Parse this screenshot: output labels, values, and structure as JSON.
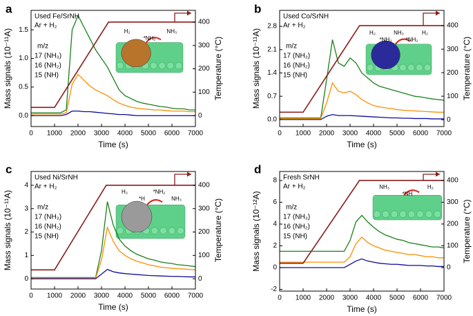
{
  "chart_data": [
    {
      "type": "line",
      "panel": "a",
      "title": "Used Fe/SrNH",
      "subtitle": "Ar + H₂",
      "legend_title": "m/z",
      "xlabel": "Time (s)",
      "ylabel": "Mass signals (10⁻¹¹A)",
      "y2label": "Temperature (°C)",
      "annotations": [
        "H₂",
        "*NH₂",
        "NH₃"
      ],
      "inset_color": "#b8742a",
      "xlim": [
        0,
        7000
      ],
      "xticks": [
        0,
        1000,
        2000,
        3000,
        4000,
        5000,
        6000,
        7000
      ],
      "ylim": [
        -0.19,
        1.84
      ],
      "yticks": [
        {
          "value": 0,
          "label": "0.0"
        },
        0.5,
        {
          "value": 1,
          "label": "1.0"
        },
        1.5
      ],
      "y2lim": [
        -47,
        450
      ],
      "y2ticks": [
        0,
        100,
        200,
        300,
        400
      ],
      "x": [
        0,
        250,
        500,
        750,
        1000,
        1250,
        1500,
        1750,
        2000,
        2250,
        2500,
        2750,
        3000,
        3250,
        3500,
        3750,
        4000,
        4250,
        4500,
        4750,
        5000,
        5250,
        5500,
        5750,
        6000,
        6250,
        6500,
        6750,
        7000
      ],
      "series": [
        {
          "name": "17 (NH₃)",
          "color": "#1a7f1a",
          "values": [
            0.05,
            0.05,
            0.05,
            0.05,
            0.05,
            0.05,
            0.1,
            1.5,
            1.75,
            1.55,
            1.35,
            1.15,
            1.0,
            0.85,
            0.65,
            0.45,
            0.35,
            0.3,
            0.25,
            0.22,
            0.2,
            0.18,
            0.16,
            0.15,
            0.13,
            0.12,
            0.12,
            0.1,
            0.1
          ]
        },
        {
          "name": "16 (NH₂)",
          "color": "#ff8c00",
          "values": [
            0.03,
            0.03,
            0.03,
            0.03,
            0.03,
            0.03,
            0.05,
            0.55,
            0.72,
            0.62,
            0.52,
            0.45,
            0.4,
            0.35,
            0.28,
            0.22,
            0.18,
            0.15,
            0.13,
            0.12,
            0.11,
            0.1,
            0.1,
            0.09,
            0.08,
            0.08,
            0.08,
            0.07,
            0.07
          ]
        },
        {
          "name": "15 (NH)",
          "color": "#0a0a9a",
          "values": [
            0,
            0,
            0,
            0,
            0,
            0,
            0.02,
            0.08,
            0.08,
            0.07,
            0.07,
            0.06,
            0.05,
            0.04,
            0.03,
            0.02,
            0.02,
            0.01,
            0,
            0,
            0,
            0,
            0,
            0,
            0,
            0,
            0,
            0,
            0
          ]
        },
        {
          "axis": "y2",
          "color": "#8b1a1a",
          "x": [
            0,
            1000,
            3300,
            7000
          ],
          "values": [
            35,
            35,
            400,
            400
          ]
        }
      ]
    },
    {
      "type": "line",
      "panel": "b",
      "title": "Used Co/SrNH",
      "subtitle": "Ar + H₂",
      "legend_title": "m/z",
      "xlabel": "Time (s)",
      "ylabel": "Mass signals (10⁻¹¹A)",
      "y2label": "Temperature (°C)",
      "annotations": [
        "H₂",
        "*NH₃",
        "NH₃",
        "*NH₂",
        "H₂"
      ],
      "inset_color": "#2a2a9a",
      "xlim": [
        0,
        7000
      ],
      "xticks": [
        0,
        1000,
        2000,
        3000,
        4000,
        5000,
        6000,
        7000
      ],
      "ylim": [
        -0.21,
        3.28
      ],
      "yticks": [
        {
          "value": 0,
          "label": "0.0"
        },
        0.7,
        1.4,
        2.1,
        2.8
      ],
      "y2lim": [
        -29,
        465
      ],
      "y2ticks": [
        0,
        100,
        200,
        300,
        400
      ],
      "x": [
        0,
        250,
        500,
        750,
        1000,
        1250,
        1500,
        1750,
        2000,
        2250,
        2500,
        2750,
        3000,
        3250,
        3500,
        3750,
        4000,
        4250,
        4500,
        4750,
        5000,
        5250,
        5500,
        5750,
        6000,
        6250,
        6500,
        6750,
        7000
      ],
      "series": [
        {
          "name": "17 (NH₃)",
          "color": "#1a7f1a",
          "values": [
            0.05,
            0.05,
            0.05,
            0.05,
            0.05,
            0.05,
            0.05,
            0.05,
            1.2,
            2.4,
            1.7,
            1.6,
            1.85,
            1.7,
            1.4,
            1.25,
            1.1,
            1.0,
            0.95,
            0.9,
            0.85,
            0.8,
            0.75,
            0.7,
            0.68,
            0.65,
            0.62,
            0.6,
            0.58
          ]
        },
        {
          "name": "16 (NH₂)",
          "color": "#ff8c00",
          "values": [
            0.03,
            0.03,
            0.03,
            0.03,
            0.03,
            0.03,
            0.03,
            0.03,
            0.5,
            1.1,
            0.85,
            0.8,
            0.85,
            0.75,
            0.6,
            0.5,
            0.42,
            0.38,
            0.35,
            0.33,
            0.3,
            0.28,
            0.27,
            0.26,
            0.25,
            0.24,
            0.23,
            0.22,
            0.22
          ]
        },
        {
          "name": "15 (NH)",
          "color": "#0a0a9a",
          "values": [
            0,
            0,
            0,
            0,
            0,
            0,
            0,
            0,
            0.1,
            0.15,
            0.12,
            0.12,
            0.12,
            0.11,
            0.1,
            0.09,
            0.08,
            0.07,
            0.06,
            0.05,
            0.05,
            0.04,
            0.04,
            0.03,
            0.03,
            0.03,
            0.02,
            0.02,
            0.02
          ]
        },
        {
          "axis": "y2",
          "color": "#8b1a1a",
          "x": [
            0,
            1000,
            3400,
            7000
          ],
          "values": [
            32,
            32,
            400,
            400
          ]
        }
      ]
    },
    {
      "type": "line",
      "panel": "c",
      "title": "Used Ni/SrNH",
      "subtitle": "Ar + H₂",
      "legend_title": "m/z",
      "xlabel": "Time (s)",
      "ylabel": "Mass signals (10⁻¹¹A)",
      "y2label": "Temperature (°C)",
      "annotations": [
        "H₂",
        "*H",
        "*NH₂",
        "NH₃"
      ],
      "inset_color": "#9a9a9a",
      "xlim": [
        0,
        7000
      ],
      "xticks": [
        0,
        1000,
        2000,
        3000,
        4000,
        5000,
        6000,
        7000
      ],
      "ylim": [
        -0.44,
        4.59
      ],
      "yticks": [
        0,
        1,
        2,
        3,
        4
      ],
      "y2lim": [
        -44,
        459
      ],
      "y2ticks": [
        0,
        100,
        200,
        300,
        400
      ],
      "x": [
        0,
        250,
        500,
        750,
        1000,
        1250,
        1500,
        1750,
        2000,
        2250,
        2500,
        2750,
        3000,
        3250,
        3500,
        3750,
        4000,
        4250,
        4500,
        4750,
        5000,
        5250,
        5500,
        5750,
        6000,
        6250,
        6500,
        6750,
        7000
      ],
      "series": [
        {
          "name": "17 (NH₃)",
          "color": "#1a7f1a",
          "values": [
            0.05,
            0.05,
            0.05,
            0.05,
            0.05,
            0.05,
            0.05,
            0.05,
            0.05,
            0.05,
            0.05,
            0.05,
            1.2,
            3.3,
            2.3,
            1.7,
            1.4,
            1.2,
            1.05,
            0.95,
            0.85,
            0.8,
            0.72,
            0.68,
            0.65,
            0.6,
            0.58,
            0.55,
            0.52
          ]
        },
        {
          "name": "16 (NH₂)",
          "color": "#ff8c00",
          "values": [
            0.03,
            0.03,
            0.03,
            0.03,
            0.03,
            0.03,
            0.03,
            0.03,
            0.03,
            0.03,
            0.03,
            0.03,
            0.8,
            2.2,
            1.6,
            1.2,
            1.0,
            0.85,
            0.75,
            0.68,
            0.6,
            0.55,
            0.5,
            0.47,
            0.45,
            0.43,
            0.42,
            0.4,
            0.38
          ]
        },
        {
          "name": "15 (NH)",
          "color": "#0a0a9a",
          "values": [
            0,
            0,
            0,
            0,
            0,
            0,
            0,
            0,
            0,
            0,
            0,
            0,
            0.2,
            0.4,
            0.3,
            0.25,
            0.22,
            0.2,
            0.18,
            0.16,
            0.14,
            0.13,
            0.12,
            0.11,
            0.1,
            0.1,
            0.09,
            0.08,
            0.08
          ]
        },
        {
          "axis": "y2",
          "color": "#8b1a1a",
          "x": [
            0,
            1000,
            3200,
            7000
          ],
          "values": [
            38,
            38,
            400,
            400
          ]
        }
      ]
    },
    {
      "type": "line",
      "panel": "d",
      "title": "Fresh SrNH",
      "subtitle": "Ar + H₂",
      "legend_title": "m/z",
      "xlabel": "Time (s)",
      "ylabel": "Mass signals (10⁻¹²A)",
      "y2label": "Temperature (°C)",
      "annotations": [
        "NH₃",
        "*NH",
        "H₂"
      ],
      "inset_color": null,
      "xlim": [
        0,
        7000
      ],
      "xticks": [
        0,
        1000,
        2000,
        3000,
        4000,
        5000,
        6000,
        7000
      ],
      "ylim": [
        -2.16,
        8.83
      ],
      "yticks": [
        -2,
        0,
        2,
        4,
        6,
        8
      ],
      "y2lim": [
        -108,
        441
      ],
      "y2ticks": [
        0,
        100,
        200,
        300,
        400
      ],
      "x": [
        0,
        250,
        500,
        750,
        1000,
        1250,
        1500,
        1750,
        2000,
        2250,
        2500,
        2750,
        3000,
        3250,
        3500,
        3750,
        4000,
        4250,
        4500,
        4750,
        5000,
        5250,
        5500,
        5750,
        6000,
        6250,
        6500,
        6750,
        7000
      ],
      "series": [
        {
          "name": "17 (NH₃)",
          "color": "#1a7f1a",
          "values": [
            1.5,
            1.5,
            1.5,
            1.5,
            1.5,
            1.5,
            1.5,
            1.5,
            1.5,
            1.5,
            1.5,
            1.5,
            2.5,
            4.2,
            4.8,
            4.2,
            3.7,
            3.3,
            3.0,
            2.8,
            2.6,
            2.5,
            2.3,
            2.2,
            2.1,
            2.0,
            1.9,
            1.9,
            1.8
          ]
        },
        {
          "name": "16 (NH₂)",
          "color": "#ff8c00",
          "values": [
            0.5,
            0.5,
            0.5,
            0.5,
            0.5,
            0.5,
            0.5,
            0.5,
            0.5,
            0.5,
            0.5,
            0.5,
            1.0,
            2.2,
            2.8,
            2.3,
            2.0,
            1.8,
            1.6,
            1.5,
            1.4,
            1.3,
            1.2,
            1.2,
            1.1,
            1.0,
            1.0,
            0.9,
            0.9
          ]
        },
        {
          "name": "15 (NH)",
          "color": "#0a0a9a",
          "values": [
            0,
            0,
            0,
            0,
            0,
            0,
            0,
            0,
            0,
            0,
            0,
            0,
            0.3,
            0.6,
            0.8,
            0.6,
            0.5,
            0.4,
            0.35,
            0.3,
            0.3,
            0.25,
            0.2,
            0.2,
            0.2,
            0.15,
            0.15,
            0.1,
            0.1
          ]
        },
        {
          "axis": "y2",
          "color": "#8b1a1a",
          "x": [
            0,
            1000,
            3400,
            7000
          ],
          "values": [
            20,
            20,
            400,
            400
          ]
        }
      ]
    }
  ]
}
